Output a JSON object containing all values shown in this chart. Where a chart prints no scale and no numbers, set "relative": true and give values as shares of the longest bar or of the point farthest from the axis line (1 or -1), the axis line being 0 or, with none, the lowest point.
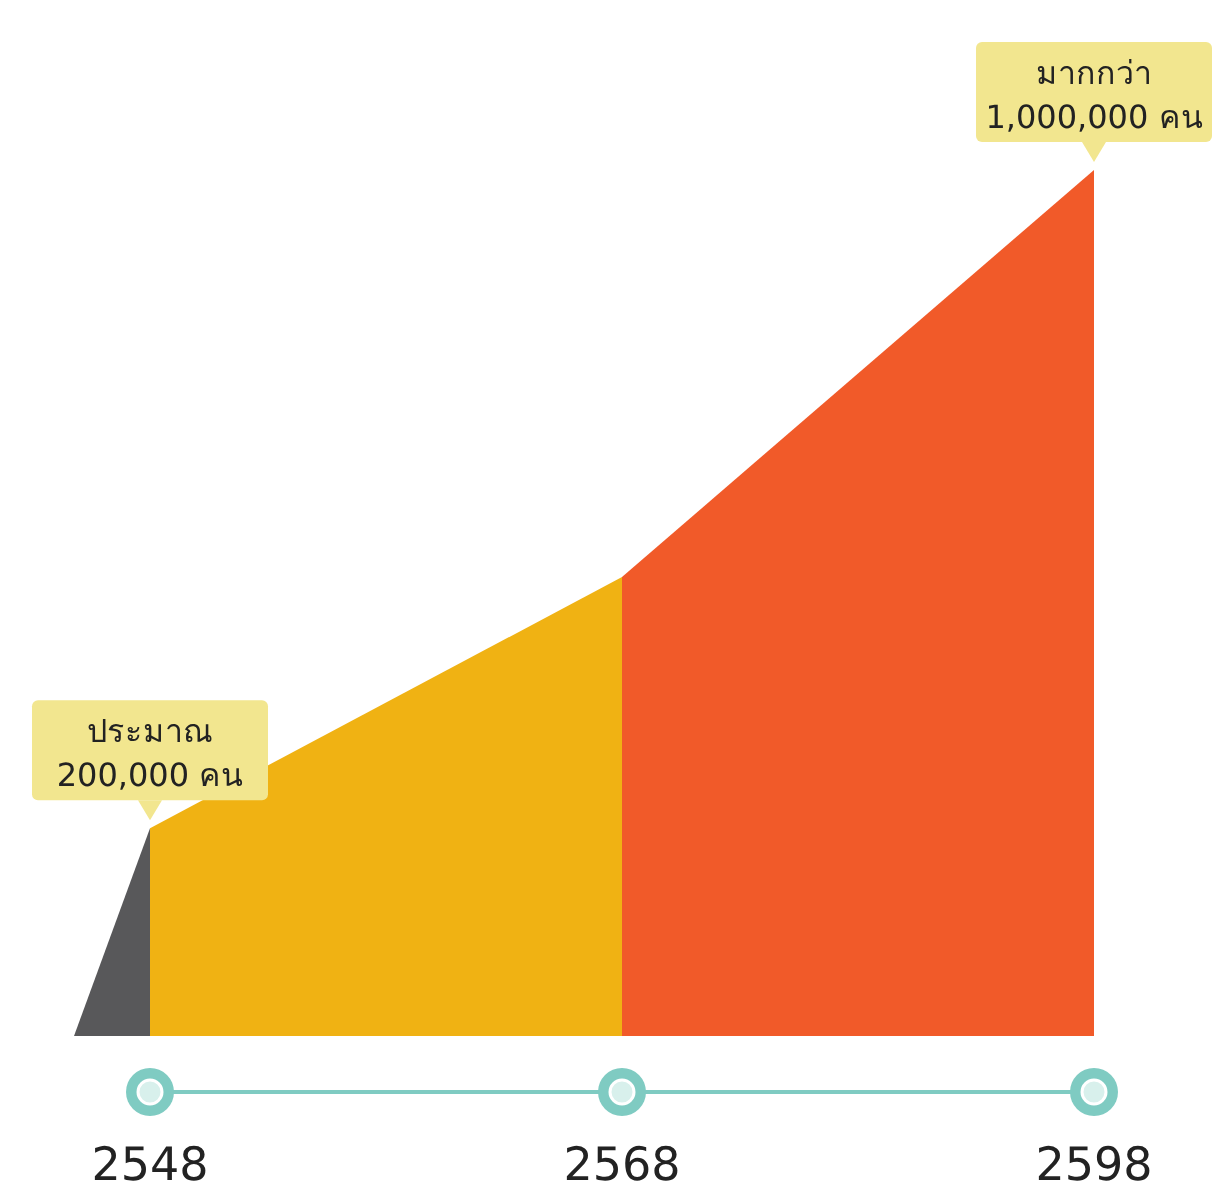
{
  "chart_data": {
    "type": "area",
    "relative": true,
    "categories": [
      "2548",
      "2568",
      "2598"
    ],
    "series": [
      {
        "color": "#f0b213",
        "values": [
          0.24,
          0.53,
          null
        ]
      },
      {
        "color": "#f15a29",
        "values": [
          null,
          0.53,
          1
        ]
      }
    ],
    "annotations": [
      {
        "text": "ประมาณ\n200,000 คน",
        "x": "2548",
        "y": 0.24
      },
      {
        "text": "มากกว่า\n1,000,000 คน",
        "x": "2598",
        "y": 1
      }
    ]
  }
}
